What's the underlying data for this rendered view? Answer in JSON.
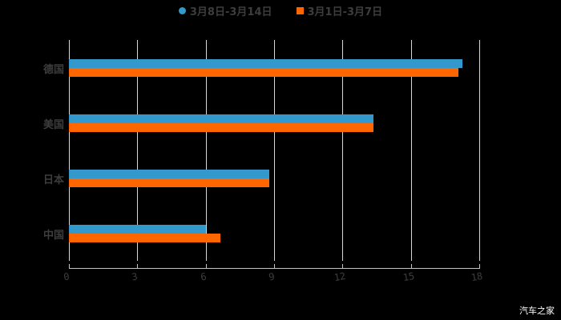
{
  "legend": {
    "items": [
      {
        "label": "3月8日-3月14日",
        "color": "#3399cc",
        "shape": "circle"
      },
      {
        "label": "3月1日-3月7日",
        "color": "#ff6600",
        "shape": "square"
      }
    ]
  },
  "axis": {
    "x_ticks": [
      "0",
      "3",
      "6",
      "9",
      "12",
      "15",
      "18"
    ]
  },
  "categories_display": [
    "德国",
    "美国",
    "日本",
    "中国"
  ],
  "watermark": "汽车之家",
  "chart_data": {
    "type": "bar",
    "orientation": "horizontal",
    "title": "",
    "xlabel": "",
    "ylabel": "",
    "categories": [
      "德国",
      "美国",
      "日本",
      "中国"
    ],
    "series": [
      {
        "name": "3月8日-3月14日",
        "color": "#3399cc",
        "values": [
          17.25,
          13.35,
          8.8,
          6.0
        ]
      },
      {
        "name": "3月1日-3月7日",
        "color": "#ff6600",
        "values": [
          17.1,
          13.35,
          8.8,
          6.65
        ]
      }
    ],
    "xlim": [
      0,
      18
    ],
    "x_ticks": [
      0,
      3,
      6,
      9,
      12,
      15,
      18
    ],
    "grid": {
      "vertical": true,
      "horizontal": false
    },
    "legend_position": "top"
  }
}
